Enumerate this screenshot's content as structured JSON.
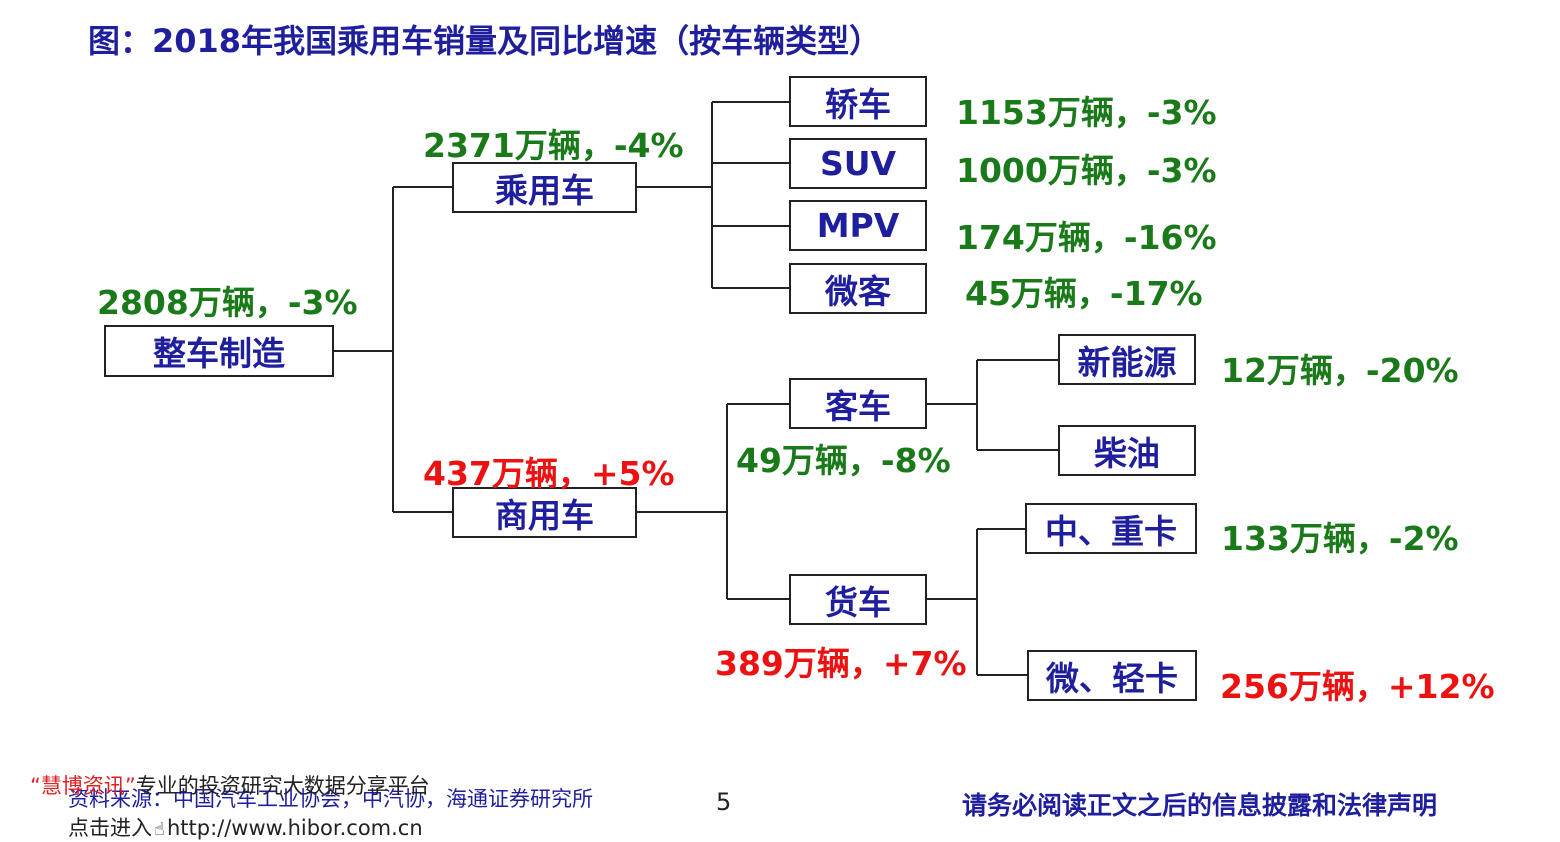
{
  "title": "图：2018年我国乘用车销量及同比增速（按车辆类型）",
  "nodes": {
    "root": {
      "name": "整车制造",
      "value": "2808万辆，-3%"
    },
    "passenger": {
      "name": "乘用车",
      "value": "2371万辆，-4%"
    },
    "commercial": {
      "name": "商用车",
      "value": "437万辆，+5%"
    },
    "sedan": {
      "name": "轿车",
      "value": "1153万辆，-3%"
    },
    "suv": {
      "name": "SUV",
      "value": "1000万辆，-3%"
    },
    "mpv": {
      "name": "MPV",
      "value": "174万辆，-16%"
    },
    "mini": {
      "name": "微客",
      "value": "45万辆，-17%"
    },
    "bus": {
      "name": "客车",
      "value": "49万辆，-8%"
    },
    "truck": {
      "name": "货车",
      "value": "389万辆，+7%"
    },
    "newenergy": {
      "name": "新能源",
      "value": "12万辆，-20%"
    },
    "diesel": {
      "name": "柴油"
    },
    "heavy": {
      "name": "中、重卡",
      "value": "133万辆，-2%"
    },
    "light": {
      "name": "微、轻卡",
      "value": "256万辆，+12%"
    }
  },
  "colors": {
    "positive": "#ee1111",
    "negative": "#1a7a1a",
    "box_text": "#1f1f9e"
  },
  "footer": {
    "brand": "“慧博资讯”",
    "brand_suffix": "专业的投资研究大数据分享平台",
    "source": "资料来源：中国汽车工业协会，中汽协，海通证券研究所",
    "link_prefix": "点击进入",
    "link_url": "http://www.hibor.com.cn",
    "page_number": "5",
    "disclaimer": "请务必阅读正文之后的信息披露和法律声明"
  }
}
